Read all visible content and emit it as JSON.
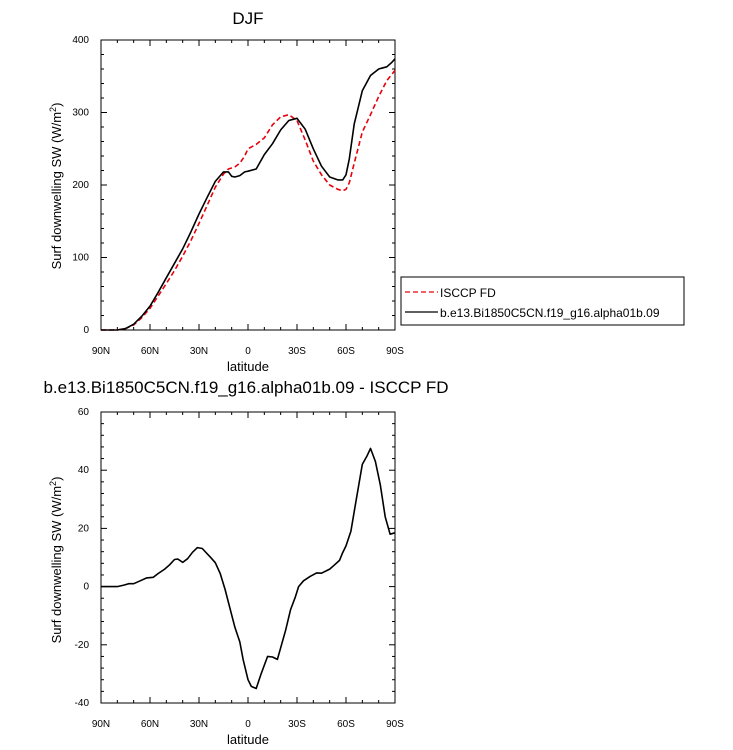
{
  "chart_data": [
    {
      "type": "line",
      "title": "DJF",
      "xlabel": "latitude",
      "ylabel_main": "Surf downwelling SW (W/m",
      "ylabel_sup": "2",
      "ylabel_tail": ")",
      "xlim": [
        -90,
        90
      ],
      "ylim": [
        0,
        400
      ],
      "xticks": [
        -90,
        -60,
        -30,
        0,
        30,
        60,
        90
      ],
      "xtick_labels": [
        "90N",
        "60N",
        "30N",
        "0",
        "30S",
        "60S",
        "90S"
      ],
      "yticks": [
        0,
        100,
        200,
        300,
        400
      ],
      "ytick_labels": [
        "0",
        "100",
        "200",
        "300",
        "400"
      ],
      "legend_position": "right",
      "series": [
        {
          "name": "ISCCP FD",
          "color": "#e8000b",
          "dashed": true,
          "x": [
            -90,
            -80,
            -75,
            -70,
            -65,
            -60,
            -55,
            -50,
            -45,
            -40,
            -35,
            -30,
            -25,
            -20,
            -15,
            -12,
            -8,
            -5,
            -2,
            0,
            5,
            10,
            15,
            20,
            25,
            30,
            35,
            40,
            45,
            50,
            55,
            58,
            60,
            62,
            65,
            70,
            75,
            80,
            85,
            90
          ],
          "y": [
            0,
            0,
            2,
            7,
            17,
            30,
            47,
            64,
            82,
            102,
            123,
            147,
            172,
            197,
            215,
            222,
            225,
            230,
            240,
            250,
            256,
            265,
            283,
            294,
            297,
            289,
            262,
            233,
            214,
            200,
            194,
            192,
            194,
            203,
            230,
            273,
            297,
            322,
            344,
            358
          ]
        },
        {
          "name": "b.e13.Bi1850C5CN.f19_g16.alpha01b.09",
          "color": "#000000",
          "dashed": false,
          "x": [
            -90,
            -80,
            -75,
            -70,
            -65,
            -60,
            -55,
            -50,
            -45,
            -40,
            -35,
            -30,
            -25,
            -20,
            -15,
            -12,
            -10,
            -8,
            -5,
            -2,
            0,
            5,
            10,
            15,
            20,
            25,
            30,
            35,
            40,
            45,
            50,
            55,
            58,
            60,
            62,
            65,
            70,
            75,
            80,
            85,
            88,
            90
          ],
          "y": [
            0,
            0,
            2,
            8,
            19,
            33,
            52,
            72,
            92,
            112,
            135,
            160,
            183,
            205,
            218,
            218,
            212,
            211,
            213,
            218,
            219,
            222,
            242,
            257,
            276,
            289,
            292,
            277,
            250,
            226,
            211,
            207,
            207,
            214,
            236,
            284,
            330,
            351,
            360,
            363,
            369,
            374
          ]
        }
      ]
    },
    {
      "type": "line",
      "title": "b.e13.Bi1850C5CN.f19_g16.alpha01b.09 - ISCCP FD",
      "xlabel": "latitude",
      "ylabel_main": "Surf downwelling SW (W/m",
      "ylabel_sup": "2",
      "ylabel_tail": ")",
      "xlim": [
        -90,
        90
      ],
      "ylim": [
        -40,
        60
      ],
      "xticks": [
        -90,
        -60,
        -30,
        0,
        30,
        60,
        90
      ],
      "xtick_labels": [
        "90N",
        "60N",
        "30N",
        "0",
        "30S",
        "60S",
        "90S"
      ],
      "yticks": [
        -40,
        -20,
        0,
        20,
        40,
        60
      ],
      "ytick_labels": [
        "-40",
        "-20",
        "0",
        "20",
        "40",
        "60"
      ],
      "series": [
        {
          "color": "#000000",
          "dashed": false,
          "x": [
            -90,
            -80,
            -76,
            -73,
            -70,
            -66,
            -62,
            -58,
            -55,
            -51,
            -48,
            -45,
            -43,
            -40,
            -37,
            -34,
            -31,
            -28,
            -26,
            -23,
            -20,
            -17,
            -14,
            -11,
            -8,
            -5,
            -3,
            0,
            2,
            5,
            8,
            12,
            15,
            18,
            20,
            23,
            26,
            29,
            31,
            34,
            38,
            42,
            45,
            50,
            53,
            56,
            58,
            60,
            63,
            66,
            70,
            73,
            75,
            78,
            81,
            84,
            87,
            90
          ],
          "y": [
            0,
            0,
            0.5,
            1,
            1,
            2,
            3,
            3.2,
            4.5,
            6,
            7.5,
            9.3,
            9.5,
            8.3,
            9.6,
            11.8,
            13.4,
            13.1,
            11.9,
            10.1,
            8.2,
            4.5,
            -1,
            -7.5,
            -14,
            -19,
            -25,
            -32,
            -34.3,
            -35,
            -30,
            -24,
            -24.2,
            -25,
            -21,
            -15,
            -8,
            -3.5,
            0,
            2,
            3.5,
            4.7,
            4.6,
            6,
            7.5,
            9,
            11.7,
            14,
            19,
            29,
            42,
            45,
            47.5,
            43,
            35,
            24,
            18,
            18.5
          ]
        }
      ]
    }
  ]
}
